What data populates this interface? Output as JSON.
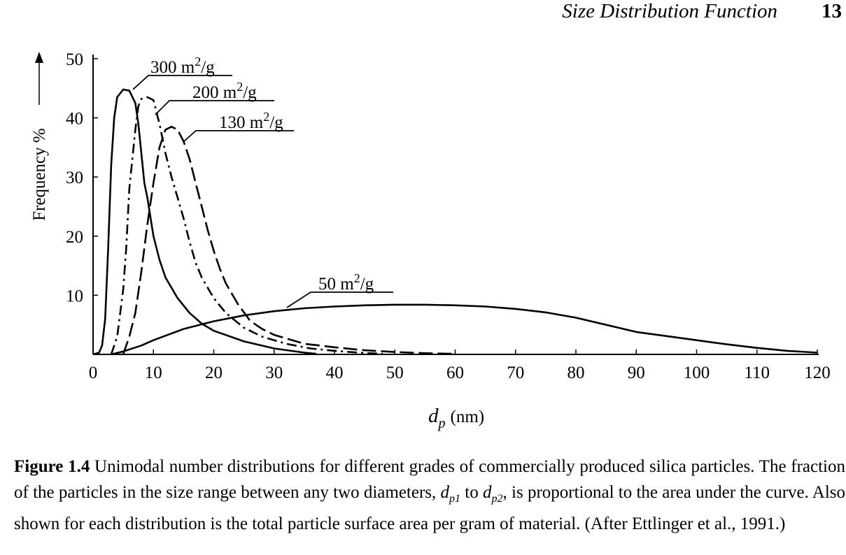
{
  "header": {
    "running_title": "Size Distribution Function",
    "page_number": "13"
  },
  "chart_data": {
    "type": "line",
    "xlabel": "d_p (nm)",
    "xlabel_parts": {
      "var": "d",
      "sub": "p",
      "unit": "(nm)"
    },
    "ylabel": "Frequency %",
    "xlim": [
      0,
      120
    ],
    "ylim": [
      0,
      50
    ],
    "x_ticks": [
      "0",
      "10",
      "20",
      "30",
      "40",
      "50",
      "60",
      "70",
      "80",
      "90",
      "100",
      "110",
      "120"
    ],
    "y_ticks": [
      "10",
      "20",
      "30",
      "40",
      "50"
    ],
    "grid": false,
    "series": [
      {
        "name": "300 m2/g",
        "label_base": "300 m",
        "label_sup": "2",
        "label_tail": "/g",
        "style": "solid",
        "points": [
          [
            0,
            0
          ],
          [
            1,
            0.3
          ],
          [
            1.5,
            1.5
          ],
          [
            2,
            6
          ],
          [
            2.5,
            18
          ],
          [
            3,
            32
          ],
          [
            3.5,
            40
          ],
          [
            4,
            43.5
          ],
          [
            5,
            44.8
          ],
          [
            6,
            44.6
          ],
          [
            7,
            42.5
          ],
          [
            7.5,
            39
          ],
          [
            8,
            34
          ],
          [
            8.5,
            29
          ],
          [
            9,
            26.5
          ],
          [
            10,
            20
          ],
          [
            11,
            16
          ],
          [
            12,
            13
          ],
          [
            14,
            9.5
          ],
          [
            16,
            7
          ],
          [
            18,
            5.2
          ],
          [
            20,
            4
          ],
          [
            25,
            2.2
          ],
          [
            30,
            1
          ],
          [
            35,
            0.3
          ],
          [
            37,
            0.1
          ]
        ]
      },
      {
        "name": "200 m2/g",
        "label_base": "200 m",
        "label_sup": "2",
        "label_tail": "/g",
        "style": "dashdot",
        "points": [
          [
            3,
            0
          ],
          [
            4,
            3
          ],
          [
            5,
            11
          ],
          [
            5.5,
            18
          ],
          [
            6,
            28
          ],
          [
            7,
            38
          ],
          [
            7.5,
            42
          ],
          [
            8,
            43.2
          ],
          [
            9,
            43.5
          ],
          [
            10,
            43
          ],
          [
            11,
            39
          ],
          [
            12,
            34
          ],
          [
            13,
            30
          ],
          [
            14,
            26.5
          ],
          [
            15,
            23
          ],
          [
            16,
            19
          ],
          [
            17,
            15.5
          ],
          [
            18,
            13
          ],
          [
            20,
            9.5
          ],
          [
            22,
            7
          ],
          [
            25,
            4.5
          ],
          [
            28,
            3
          ],
          [
            32,
            1.8
          ],
          [
            36,
            1
          ],
          [
            40,
            0.6
          ],
          [
            44,
            0.3
          ],
          [
            48,
            0.1
          ]
        ]
      },
      {
        "name": "130 m2/g",
        "label_base": "130 m",
        "label_sup": "2",
        "label_tail": "/g",
        "style": "longdash",
        "points": [
          [
            5,
            0
          ],
          [
            6,
            3
          ],
          [
            7,
            7
          ],
          [
            8,
            14
          ],
          [
            9,
            22
          ],
          [
            10,
            29
          ],
          [
            11,
            35
          ],
          [
            12,
            38
          ],
          [
            13,
            38.5
          ],
          [
            14,
            38
          ],
          [
            15,
            36
          ],
          [
            16,
            33
          ],
          [
            17,
            29
          ],
          [
            18,
            25
          ],
          [
            19,
            21
          ],
          [
            20,
            17.5
          ],
          [
            21,
            14.5
          ],
          [
            22,
            12
          ],
          [
            24,
            8.5
          ],
          [
            26,
            5.7
          ],
          [
            28,
            4.3
          ],
          [
            30,
            3.3
          ],
          [
            35,
            1.8
          ],
          [
            40,
            1.2
          ],
          [
            45,
            0.7
          ],
          [
            50,
            0.4
          ],
          [
            55,
            0.2
          ],
          [
            60,
            0.1
          ]
        ]
      },
      {
        "name": "50 m2/g",
        "label_base": "50 m",
        "label_sup": "2",
        "label_tail": "/g",
        "style": "solid",
        "points": [
          [
            3,
            0
          ],
          [
            5,
            0.5
          ],
          [
            8,
            1.5
          ],
          [
            10,
            2.4
          ],
          [
            15,
            4.3
          ],
          [
            20,
            5.6
          ],
          [
            25,
            6.6
          ],
          [
            30,
            7.3
          ],
          [
            35,
            7.8
          ],
          [
            40,
            8.1
          ],
          [
            45,
            8.3
          ],
          [
            50,
            8.4
          ],
          [
            55,
            8.4
          ],
          [
            60,
            8.3
          ],
          [
            65,
            8.1
          ],
          [
            70,
            7.7
          ],
          [
            75,
            7.1
          ],
          [
            80,
            6.2
          ],
          [
            85,
            5
          ],
          [
            90,
            3.8
          ],
          [
            95,
            3.1
          ],
          [
            100,
            2.4
          ],
          [
            105,
            1.7
          ],
          [
            110,
            1.1
          ],
          [
            115,
            0.6
          ],
          [
            120,
            0.3
          ]
        ]
      }
    ],
    "annotations": [
      {
        "series": "300 m2/g",
        "text": "300 m2/g"
      },
      {
        "series": "200 m2/g",
        "text": "200 m2/g"
      },
      {
        "series": "130 m2/g",
        "text": "130 m2/g"
      },
      {
        "series": "50 m2/g",
        "text": "50 m2/g"
      }
    ]
  },
  "caption": {
    "label": "Figure 1.4",
    "text_1": " Unimodal number distributions for different grades of commercially produced silica particles. The fraction of the particles in the size range between any two diameters, ",
    "var_1": "d",
    "sub_1": "p1",
    "text_2": " to ",
    "var_2": "d",
    "sub_2": "p2",
    "text_3": ", is proportional to the area under the curve. Also shown for each distribution is the total particle surface area per gram of material. (After Ettlinger et al., 1991.)"
  }
}
